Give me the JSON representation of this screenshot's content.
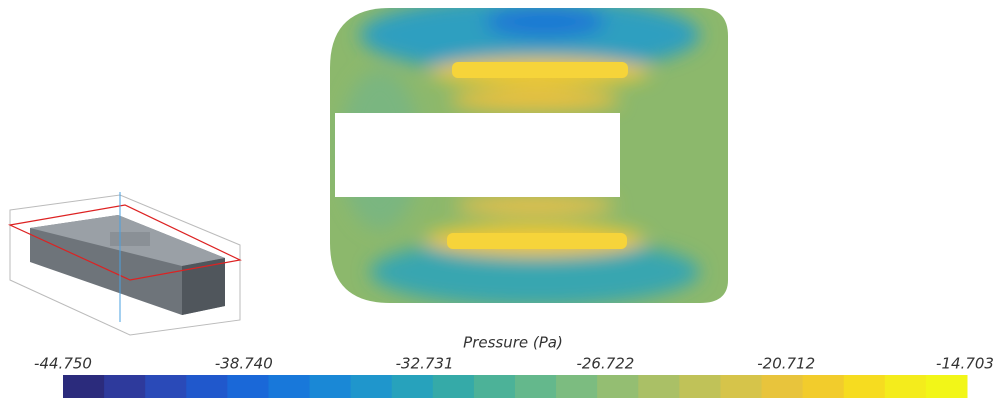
{
  "colorbar": {
    "title": "Pressure (Pa)",
    "lim": [
      -44.75,
      -14.703
    ],
    "ticks": [
      {
        "value": -44.75,
        "label": "-44.750"
      },
      {
        "value": -38.74,
        "label": "-38.740"
      },
      {
        "value": -32.731,
        "label": "-32.731"
      },
      {
        "value": -26.722,
        "label": "-26.722"
      },
      {
        "value": -20.712,
        "label": "-20.712"
      },
      {
        "value": -14.703,
        "label": "-14.703"
      }
    ],
    "colors": [
      "#2b2b7c",
      "#2e3a9c",
      "#2a4ab8",
      "#2058cc",
      "#1a68d8",
      "#1878da",
      "#1a88d6",
      "#1f96cc",
      "#27a2bc",
      "#35aaa8",
      "#4cb298",
      "#64b88c",
      "#7cbc80",
      "#94be72",
      "#aac066",
      "#c0c258",
      "#d6c44a",
      "#e8c43c",
      "#f2cc2c",
      "#f6dc20",
      "#f4ec1c",
      "#f2f618"
    ]
  }
}
